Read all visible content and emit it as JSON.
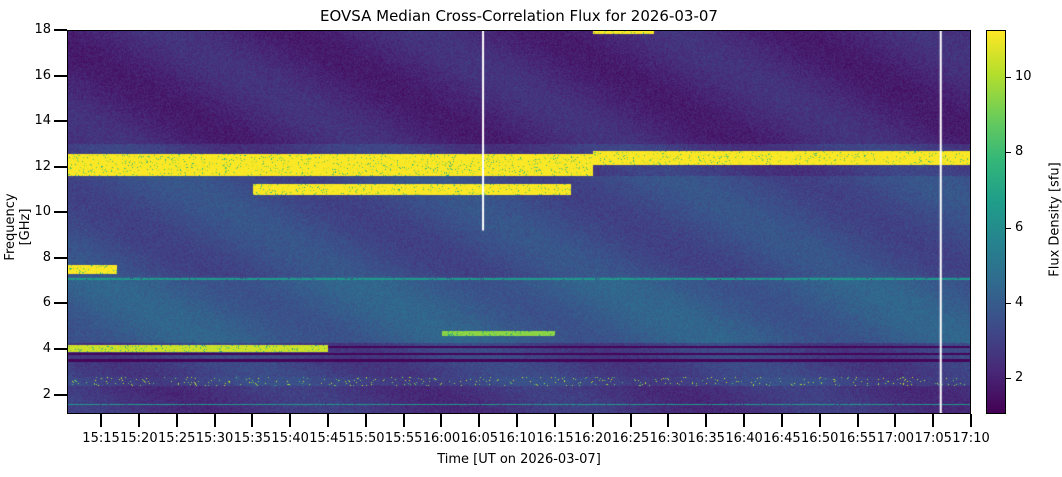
{
  "chart_data": {
    "type": "heatmap",
    "title": "EOVSA Median Cross-Correlation Flux for 2026-03-07",
    "xlabel": "Time [UT on 2026-03-07]",
    "ylabel": "Frequency [GHz]",
    "colorbar_label": "Flux Density [sfu]",
    "colormap": "viridis",
    "xlim_minutes_ut": [
      910.5,
      1030
    ],
    "ylim": [
      1.15,
      18
    ],
    "clim": [
      1.05,
      11.25
    ],
    "x_ticks": [
      {
        "min": 915,
        "label": "15:15"
      },
      {
        "min": 920,
        "label": "15:20"
      },
      {
        "min": 925,
        "label": "15:25"
      },
      {
        "min": 930,
        "label": "15:30"
      },
      {
        "min": 935,
        "label": "15:35"
      },
      {
        "min": 940,
        "label": "15:40"
      },
      {
        "min": 945,
        "label": "15:45"
      },
      {
        "min": 950,
        "label": "15:50"
      },
      {
        "min": 955,
        "label": "15:55"
      },
      {
        "min": 960,
        "label": "16:00"
      },
      {
        "min": 965,
        "label": "16:05"
      },
      {
        "min": 970,
        "label": "16:10"
      },
      {
        "min": 975,
        "label": "16:15"
      },
      {
        "min": 980,
        "label": "16:20"
      },
      {
        "min": 985,
        "label": "16:25"
      },
      {
        "min": 990,
        "label": "16:30"
      },
      {
        "min": 995,
        "label": "16:35"
      },
      {
        "min": 1000,
        "label": "16:40"
      },
      {
        "min": 1005,
        "label": "16:45"
      },
      {
        "min": 1010,
        "label": "16:50"
      },
      {
        "min": 1015,
        "label": "16:55"
      },
      {
        "min": 1020,
        "label": "17:00"
      },
      {
        "min": 1025,
        "label": "17:05"
      },
      {
        "min": 1030,
        "label": "17:10"
      }
    ],
    "y_ticks": [
      {
        "v": 2,
        "label": "2"
      },
      {
        "v": 4,
        "label": "4"
      },
      {
        "v": 6,
        "label": "6"
      },
      {
        "v": 8,
        "label": "8"
      },
      {
        "v": 10,
        "label": "10"
      },
      {
        "v": 12,
        "label": "12"
      },
      {
        "v": 14,
        "label": "14"
      },
      {
        "v": 16,
        "label": "16"
      },
      {
        "v": 18,
        "label": "18"
      }
    ],
    "cbar_ticks": [
      {
        "v": 2,
        "label": "2"
      },
      {
        "v": 4,
        "label": "4"
      },
      {
        "v": 6,
        "label": "6"
      },
      {
        "v": 8,
        "label": "8"
      },
      {
        "v": 10,
        "label": "10"
      }
    ],
    "background_levels": [
      {
        "f": [
          1.15,
          2.4
        ],
        "v": 2.6
      },
      {
        "f": [
          2.4,
          2.8
        ],
        "v": 3.2
      },
      {
        "f": [
          2.8,
          4.3
        ],
        "v": 3.0
      },
      {
        "f": [
          4.3,
          7.2
        ],
        "v": 4.0
      },
      {
        "f": [
          7.2,
          11.6
        ],
        "v": 3.4
      },
      {
        "f": [
          11.6,
          13
        ],
        "v": 2.8
      },
      {
        "f": [
          13,
          18
        ],
        "v": 2.2
      }
    ],
    "features": [
      {
        "t": [
          910.5,
          980
        ],
        "f": [
          11.6,
          12.6
        ],
        "v": 11.2
      },
      {
        "t": [
          980,
          1030
        ],
        "f": [
          12.1,
          12.7
        ],
        "v": 11.2
      },
      {
        "t": [
          935,
          977
        ],
        "f": [
          10.8,
          11.25
        ],
        "v": 11.2
      },
      {
        "t": [
          910.5,
          917
        ],
        "f": [
          7.3,
          7.7
        ],
        "v": 11.2
      },
      {
        "t": [
          910.5,
          945
        ],
        "f": [
          3.9,
          4.2
        ],
        "v": 10.5
      },
      {
        "t": [
          960,
          975
        ],
        "f": [
          4.6,
          4.8
        ],
        "v": 9.5
      },
      {
        "t": [
          980,
          988
        ],
        "f": [
          17.85,
          18
        ],
        "v": 11.2
      },
      {
        "t": [
          910.5,
          1030
        ],
        "f": [
          3.45,
          3.6
        ],
        "v": 1.2
      },
      {
        "t": [
          910.5,
          1030
        ],
        "f": [
          3.75,
          3.85
        ],
        "v": 1.2
      },
      {
        "t": [
          945,
          1030
        ],
        "f": [
          4.05,
          4.15
        ],
        "v": 1.2
      },
      {
        "t": [
          910.5,
          1030
        ],
        "f": [
          7.05,
          7.15
        ],
        "v": 6.5
      },
      {
        "t": [
          910.5,
          1030
        ],
        "f": [
          1.55,
          1.6
        ],
        "v": 6.5
      }
    ],
    "data_gaps": [
      {
        "t": 965.5,
        "f": [
          9.2,
          18
        ]
      },
      {
        "t": 1026,
        "f": [
          1.15,
          18
        ]
      }
    ]
  }
}
